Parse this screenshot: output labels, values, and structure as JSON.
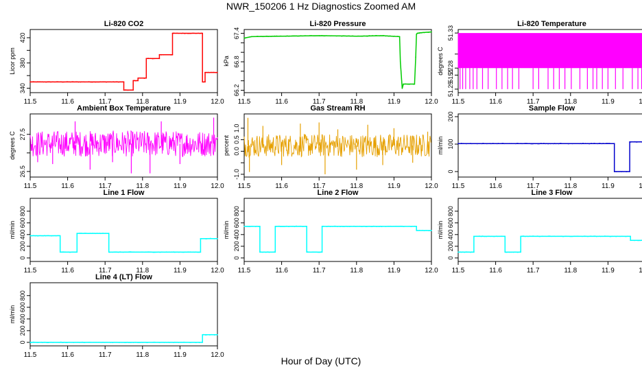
{
  "page": {
    "title": "NWR_150206  1 Hz Diagnostics Zoomed AM",
    "xlabel": "Hour of Day (UTC)"
  },
  "chart_data": [
    {
      "type": "line",
      "title": "Li-820 CO2",
      "ylabel": "Licor ppm",
      "xlim": [
        11.5,
        12.0
      ],
      "ylim": [
        333,
        433
      ],
      "xticks": [
        11.5,
        11.6,
        11.7,
        11.8,
        11.9,
        12.0
      ],
      "xtick_labels": [
        "11.5",
        "11.6",
        "11.7",
        "11.8",
        "11.9",
        "12.0"
      ],
      "yticks": [
        340,
        360,
        380,
        400,
        420
      ],
      "ytick_labels": [
        "340",
        "",
        "380",
        "",
        "420"
      ],
      "series": [
        {
          "color": "#ff0000",
          "style": "step",
          "x": [
            11.5,
            11.75,
            11.75,
            11.775,
            11.775,
            11.788,
            11.788,
            11.81,
            11.81,
            11.833,
            11.833,
            11.845,
            11.845,
            11.88,
            11.88,
            11.96,
            11.96,
            11.967,
            11.967,
            12.0
          ],
          "y": [
            350,
            350,
            337,
            337,
            352,
            352,
            356,
            356,
            387,
            387,
            387,
            387,
            393,
            393,
            427,
            427,
            350,
            350,
            365,
            365
          ]
        }
      ]
    },
    {
      "type": "line",
      "title": "Li-820 Pressure",
      "ylabel": "kPa",
      "xlim": [
        11.5,
        12.0
      ],
      "ylim": [
        66.15,
        67.48
      ],
      "xticks": [
        11.5,
        11.6,
        11.7,
        11.8,
        11.9,
        12.0
      ],
      "xtick_labels": [
        "11.5",
        "11.6",
        "11.7",
        "11.8",
        "11.9",
        "12.0"
      ],
      "yticks": [
        66.2,
        66.4,
        66.6,
        66.8,
        67.0,
        67.2,
        67.4
      ],
      "ytick_labels": [
        "66.2",
        "",
        "",
        "66.8",
        "",
        "",
        "67.4"
      ],
      "series": [
        {
          "color": "#00cc00",
          "style": "line",
          "x": [
            11.5,
            11.52,
            11.6,
            11.7,
            11.8,
            11.87,
            11.915,
            11.917,
            11.922,
            11.925,
            11.955,
            11.958,
            11.96,
            11.962,
            11.97,
            12.0
          ],
          "y": [
            67.3,
            67.33,
            67.34,
            67.35,
            67.34,
            67.35,
            67.33,
            66.8,
            66.24,
            66.33,
            66.33,
            66.9,
            67.38,
            67.4,
            67.41,
            67.43
          ]
        }
      ]
    },
    {
      "type": "line",
      "title": "Li-820 Temperature",
      "ylabel": "degrees C",
      "xlim": [
        11.5,
        12.0
      ],
      "ylim": [
        51.245,
        51.335
      ],
      "xticks": [
        11.5,
        11.6,
        11.7,
        11.8,
        11.9,
        12.0
      ],
      "xtick_labels": [
        "11.5",
        "11.6",
        "11.7",
        "11.8",
        "11.9",
        "12.0"
      ],
      "yticks": [
        51.25,
        51.27,
        51.28,
        51.3,
        51.33
      ],
      "ytick_labels": [
        "51.25",
        "51.27",
        "51.28",
        "",
        "51.33"
      ],
      "series": [
        {
          "color": "#ff00ff",
          "style": "band",
          "band_low": 51.28,
          "band_high": 51.33,
          "spike_low": 51.25,
          "x": [
            11.505,
            11.512,
            11.52,
            11.531,
            11.54,
            11.55,
            11.565,
            11.58,
            11.602,
            11.617,
            11.632,
            11.645,
            11.662,
            11.7,
            11.715,
            11.74,
            11.755,
            11.77,
            11.785,
            11.802,
            11.825,
            11.845,
            11.86,
            11.87,
            11.885,
            11.9,
            11.92,
            11.94,
            11.965,
            11.98,
            11.99
          ],
          "y": [
            51.25,
            51.25,
            51.25,
            51.25,
            51.25,
            51.25,
            51.25,
            51.25,
            51.25,
            51.25,
            51.25,
            51.25,
            51.25,
            51.25,
            51.25,
            51.25,
            51.25,
            51.25,
            51.25,
            51.25,
            51.25,
            51.25,
            51.25,
            51.25,
            51.25,
            51.25,
            51.25,
            51.25,
            51.25,
            51.25,
            51.25
          ]
        }
      ]
    },
    {
      "type": "line",
      "title": "Ambient Box Temperature",
      "ylabel": "degrees C",
      "xlim": [
        11.5,
        12.0
      ],
      "ylim": [
        26.35,
        28.05
      ],
      "xticks": [
        11.5,
        11.6,
        11.7,
        11.8,
        11.9,
        12.0
      ],
      "xtick_labels": [
        "11.5",
        "11.6",
        "11.7",
        "11.8",
        "11.9",
        "12.0"
      ],
      "yticks": [
        26.5,
        27.0,
        27.5
      ],
      "ytick_labels": [
        "26.5",
        "",
        "27.5"
      ],
      "series": [
        {
          "color": "#ff00ff",
          "style": "noise",
          "band_low": 26.9,
          "band_high": 27.6,
          "x": [
            11.52,
            11.56,
            11.62,
            11.66,
            11.72,
            11.77,
            11.82,
            11.85,
            11.9,
            11.95,
            11.99
          ],
          "y": [
            26.75,
            26.7,
            27.85,
            26.55,
            26.75,
            26.45,
            26.45,
            27.85,
            26.7,
            27.2,
            27.95
          ]
        }
      ]
    },
    {
      "type": "line",
      "title": "Gas Stream RH",
      "ylabel": "percent",
      "xlim": [
        11.5,
        12.0
      ],
      "ylim": [
        -1.12,
        1.62
      ],
      "xticks": [
        11.5,
        11.6,
        11.7,
        11.8,
        11.9,
        12.0
      ],
      "xtick_labels": [
        "11.5",
        "11.6",
        "11.7",
        "11.8",
        "11.9",
        "12.0"
      ],
      "yticks": [
        -1.0,
        -0.5,
        0.0,
        0.5,
        1.0
      ],
      "ytick_labels": [
        "-1.0",
        "",
        "0.0",
        "0.5",
        "1.0"
      ],
      "series": [
        {
          "color": "#e6a000",
          "style": "noise",
          "band_low": -0.25,
          "band_high": 0.75,
          "x": [
            11.51,
            11.514,
            11.55,
            11.6,
            11.65,
            11.7,
            11.716,
            11.75,
            11.8,
            11.83,
            11.87,
            11.9,
            11.95,
            11.99
          ],
          "y": [
            1.45,
            -0.9,
            1.1,
            -0.6,
            1.2,
            1.25,
            -1.0,
            0.95,
            -0.8,
            1.15,
            -0.6,
            1.0,
            -0.5,
            0.85
          ]
        }
      ]
    },
    {
      "type": "line",
      "title": "Sample Flow",
      "ylabel": "ml/min",
      "xlim": [
        11.5,
        12.0
      ],
      "ylim": [
        -20,
        210
      ],
      "xticks": [
        11.5,
        11.6,
        11.7,
        11.8,
        11.9,
        12.0
      ],
      "xtick_labels": [
        "11.5",
        "11.6",
        "11.7",
        "11.8",
        "11.9",
        "12.0"
      ],
      "yticks": [
        0,
        100,
        200
      ],
      "ytick_labels": [
        "0",
        "100",
        "200"
      ],
      "series": [
        {
          "color": "#0000cc",
          "style": "step",
          "x": [
            11.5,
            11.917,
            11.917,
            11.958,
            11.958,
            12.0
          ],
          "y": [
            102,
            102,
            0,
            0,
            108,
            108
          ]
        }
      ]
    },
    {
      "type": "line",
      "title": "Line 1 Flow",
      "ylabel": "ml/min",
      "xlim": [
        11.5,
        12.0
      ],
      "ylim": [
        -60,
        1020
      ],
      "xticks": [
        11.5,
        11.6,
        11.7,
        11.8,
        11.9,
        12.0
      ],
      "xtick_labels": [
        "11.5",
        "11.6",
        "11.7",
        "11.8",
        "11.9",
        "12.0"
      ],
      "yticks": [
        0,
        200,
        400,
        600,
        800
      ],
      "ytick_labels": [
        "0",
        "200",
        "400",
        "600",
        "800"
      ],
      "series": [
        {
          "color": "#00ffff",
          "style": "step",
          "x": [
            11.5,
            11.58,
            11.58,
            11.625,
            11.625,
            11.71,
            11.71,
            11.955,
            11.955,
            12.0
          ],
          "y": [
            380,
            380,
            100,
            100,
            420,
            420,
            100,
            100,
            330,
            330
          ]
        }
      ]
    },
    {
      "type": "line",
      "title": "Line 2 Flow",
      "ylabel": "ml/min",
      "xlim": [
        11.5,
        12.0
      ],
      "ylim": [
        -60,
        1020
      ],
      "xticks": [
        11.5,
        11.6,
        11.7,
        11.8,
        11.9,
        12.0
      ],
      "xtick_labels": [
        "11.5",
        "11.6",
        "11.7",
        "11.8",
        "11.9",
        "12.0"
      ],
      "yticks": [
        0,
        200,
        400,
        600,
        800
      ],
      "ytick_labels": [
        "0",
        "200",
        "400",
        "600",
        "800"
      ],
      "series": [
        {
          "color": "#00ffff",
          "style": "step",
          "x": [
            11.5,
            11.542,
            11.542,
            11.583,
            11.583,
            11.667,
            11.667,
            11.708,
            11.708,
            11.96,
            11.96,
            12.0
          ],
          "y": [
            540,
            540,
            100,
            100,
            540,
            540,
            100,
            100,
            540,
            540,
            470,
            470
          ]
        }
      ]
    },
    {
      "type": "line",
      "title": "Line 3 Flow",
      "ylabel": "ml/min",
      "xlim": [
        11.5,
        12.0
      ],
      "ylim": [
        -60,
        1020
      ],
      "xticks": [
        11.5,
        11.6,
        11.7,
        11.8,
        11.9,
        12.0
      ],
      "xtick_labels": [
        "11.5",
        "11.6",
        "11.7",
        "11.8",
        "11.9",
        "12.0"
      ],
      "yticks": [
        0,
        200,
        400,
        600,
        800
      ],
      "ytick_labels": [
        "0",
        "200",
        "400",
        "600",
        "800"
      ],
      "series": [
        {
          "color": "#00ffff",
          "style": "step",
          "x": [
            11.5,
            11.542,
            11.542,
            11.625,
            11.625,
            11.667,
            11.667,
            11.96,
            11.96,
            12.0
          ],
          "y": [
            100,
            100,
            370,
            370,
            100,
            100,
            370,
            370,
            300,
            300
          ]
        }
      ]
    },
    {
      "type": "line",
      "title": "Line 4 (LT) Flow",
      "ylabel": "ml/min",
      "xlim": [
        11.5,
        12.0
      ],
      "ylim": [
        -60,
        1020
      ],
      "xticks": [
        11.5,
        11.6,
        11.7,
        11.8,
        11.9,
        12.0
      ],
      "xtick_labels": [
        "11.5",
        "11.6",
        "11.7",
        "11.8",
        "11.9",
        "12.0"
      ],
      "yticks": [
        0,
        200,
        400,
        600,
        800
      ],
      "ytick_labels": [
        "0",
        "200",
        "400",
        "600",
        "800"
      ],
      "series": [
        {
          "color": "#00ffff",
          "style": "step",
          "x": [
            11.5,
            11.96,
            11.96,
            12.0
          ],
          "y": [
            0,
            0,
            130,
            130
          ]
        }
      ]
    }
  ]
}
